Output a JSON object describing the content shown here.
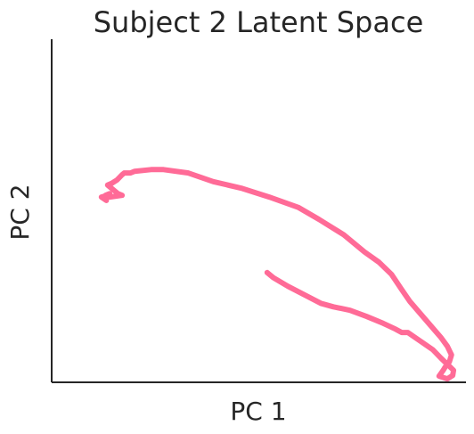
{
  "chart_data": {
    "type": "line",
    "title": "Subject 2 Latent Space",
    "xlabel": "PC 1",
    "ylabel": "PC 2",
    "xlim": [
      0,
      10
    ],
    "ylim": [
      0,
      10
    ],
    "grid": false,
    "ticks": false,
    "series": [
      {
        "color": "#ff6b97",
        "x": [
          5.2,
          5.35,
          5.7,
          6.1,
          6.5,
          6.8,
          7.0,
          7.2,
          7.6,
          8.0,
          8.3,
          8.45,
          8.6,
          8.9,
          9.2,
          9.4,
          9.7,
          9.68,
          9.55,
          9.35,
          9.45,
          9.5,
          9.6,
          9.65,
          9.55,
          9.4,
          9.15,
          8.9,
          8.65,
          8.45,
          8.2,
          7.9,
          7.55,
          7.05,
          6.45,
          5.95,
          5.25,
          4.6,
          3.9,
          3.3,
          2.7,
          2.4,
          2.0,
          1.9,
          1.75,
          1.7,
          1.58,
          1.45,
          1.35,
          1.5,
          1.6,
          1.7,
          1.4,
          1.3,
          1.4,
          1.35,
          1.2,
          1.32
        ],
        "y": [
          3.2,
          3.05,
          2.8,
          2.55,
          2.3,
          2.2,
          2.15,
          2.1,
          1.92,
          1.72,
          1.55,
          1.45,
          1.45,
          1.2,
          0.95,
          0.7,
          0.35,
          0.2,
          0.1,
          0.18,
          0.35,
          0.45,
          0.6,
          0.8,
          1.05,
          1.3,
          1.65,
          2.0,
          2.35,
          2.7,
          3.15,
          3.5,
          3.8,
          4.3,
          4.75,
          5.1,
          5.4,
          5.65,
          5.85,
          6.1,
          6.2,
          6.2,
          6.15,
          6.1,
          6.1,
          6.05,
          5.9,
          5.8,
          5.75,
          5.6,
          5.5,
          5.45,
          5.4,
          5.45,
          5.5,
          5.45,
          5.4,
          5.3
        ]
      }
    ]
  }
}
